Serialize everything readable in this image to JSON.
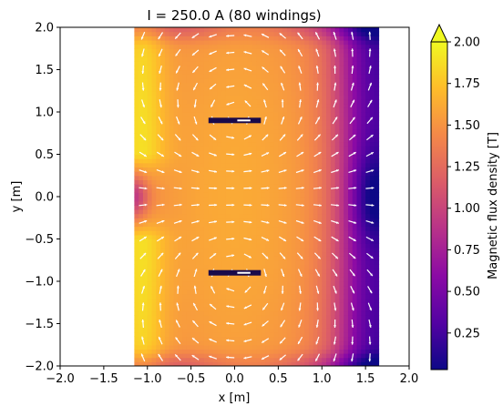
{
  "chart_data": {
    "type": "heatmap",
    "title": "I = 250.0 A (80 windings)",
    "xlabel": "x [m]",
    "ylabel": "y [m]",
    "xlim": [
      -2.0,
      2.0
    ],
    "ylim": [
      -2.0,
      2.0
    ],
    "xticks": [
      "−2.0",
      "−1.5",
      "−1.0",
      "−0.5",
      "0.0",
      "0.5",
      "1.0",
      "1.5",
      "2.0"
    ],
    "yticks": [
      "−2.0",
      "−1.5",
      "−1.0",
      "−0.5",
      "0.0",
      "0.5",
      "1.0",
      "1.5",
      "2.0"
    ],
    "x_tick_values": [
      -2.0,
      -1.5,
      -1.0,
      -0.5,
      0.0,
      0.5,
      1.0,
      1.5,
      2.0
    ],
    "y_tick_values": [
      -2.0,
      -1.5,
      -1.0,
      -0.5,
      0.0,
      0.5,
      1.0,
      1.5,
      2.0
    ],
    "domain": {
      "x": [
        -1.15,
        1.65
      ],
      "y": [
        -2.0,
        2.0
      ]
    },
    "conductors": [
      {
        "x": [
          -0.3,
          0.3
        ],
        "y": 0.9
      },
      {
        "x": [
          -0.3,
          0.3
        ],
        "y": -0.9
      }
    ],
    "colorbar": {
      "label": "Magnetic flux density [T]",
      "min": 0.03,
      "max": 2.0,
      "ticks": [
        "0.25",
        "0.50",
        "0.75",
        "1.00",
        "1.25",
        "1.50",
        "1.75",
        "2.00"
      ],
      "tick_values": [
        0.25,
        0.5,
        0.75,
        1.0,
        1.25,
        1.5,
        1.75,
        2.0
      ],
      "extend": "max",
      "colormap": "plasma"
    },
    "vector_field": {
      "type": "quiver",
      "color": "#ffffff",
      "spacing_m": 0.2
    },
    "grid": false
  }
}
